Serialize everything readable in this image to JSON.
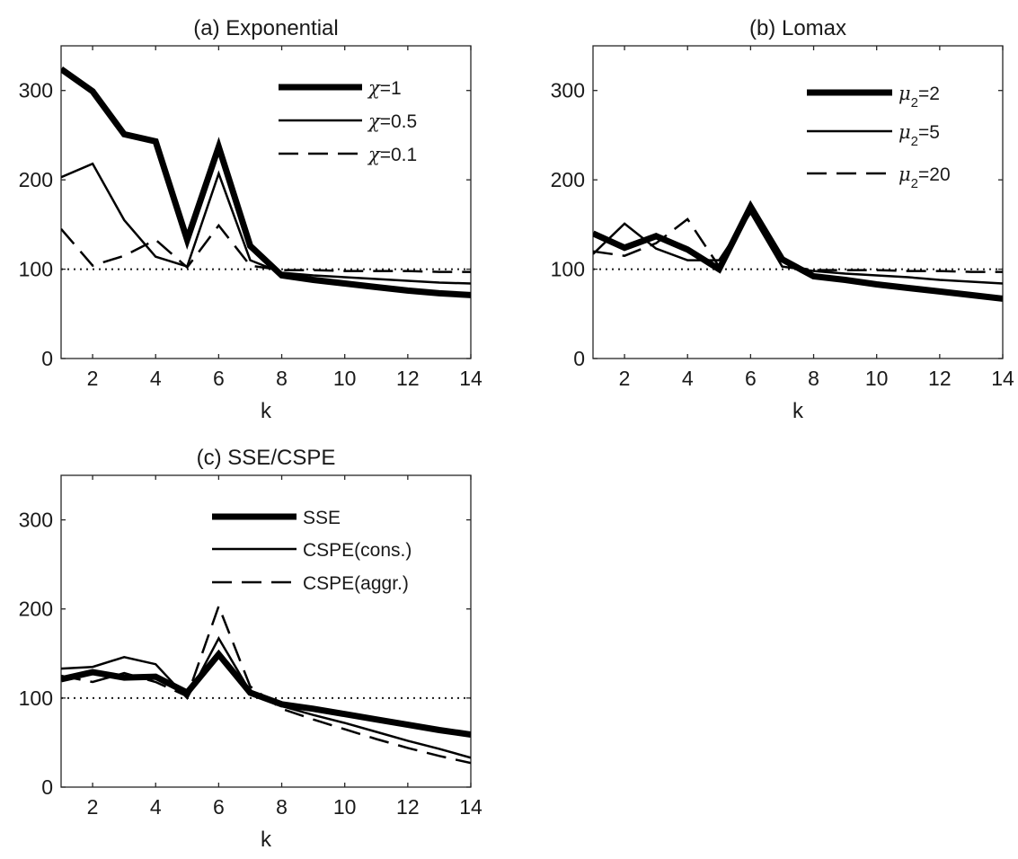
{
  "chart_data": [
    {
      "type": "line",
      "title": "(a) Exponential",
      "xlabel": "k",
      "ylabel": "",
      "xlim": [
        1,
        14
      ],
      "ylim": [
        0,
        350
      ],
      "xticks": [
        2,
        4,
        6,
        8,
        10,
        12,
        14
      ],
      "yticks": [
        0,
        100,
        200,
        300
      ],
      "reference_line": {
        "y": 100,
        "style": "dotted"
      },
      "legend": {
        "placement": "top-right",
        "entries": [
          {
            "symbol": "χ",
            "text": "=1"
          },
          {
            "symbol": "χ",
            "text": "=0.5"
          },
          {
            "symbol": "χ",
            "text": "=0.1"
          }
        ]
      },
      "x": [
        1,
        2,
        3,
        4,
        5,
        6,
        7,
        8,
        9,
        10,
        11,
        12,
        13,
        14
      ],
      "series": [
        {
          "name": "χ=1",
          "style": "thick-solid",
          "values": [
            324,
            299,
            251,
            243,
            133,
            237,
            126,
            93,
            88,
            84,
            80,
            76,
            73,
            71
          ]
        },
        {
          "name": "χ=0.5",
          "style": "thin-solid",
          "values": [
            203,
            218,
            155,
            114,
            103,
            207,
            110,
            96,
            93,
            91,
            89,
            87,
            85,
            84
          ]
        },
        {
          "name": "χ=0.1",
          "style": "dashed",
          "values": [
            145,
            104,
            115,
            133,
            102,
            149,
            104,
            99,
            99,
            98,
            98,
            98,
            97,
            97
          ]
        }
      ]
    },
    {
      "type": "line",
      "title": "(b) Lomax",
      "xlabel": "k",
      "ylabel": "",
      "xlim": [
        1,
        14
      ],
      "ylim": [
        0,
        350
      ],
      "xticks": [
        2,
        4,
        6,
        8,
        10,
        12,
        14
      ],
      "yticks": [
        0,
        100,
        200,
        300
      ],
      "reference_line": {
        "y": 100,
        "style": "dotted"
      },
      "legend": {
        "placement": "top-right",
        "entries": [
          {
            "symbol": "μ",
            "sub": "2",
            "text": "=2"
          },
          {
            "symbol": "μ",
            "sub": "2",
            "text": "=5"
          },
          {
            "symbol": "μ",
            "sub": "2",
            "text": "=20"
          }
        ]
      },
      "x": [
        1,
        2,
        3,
        4,
        5,
        6,
        7,
        8,
        9,
        10,
        11,
        12,
        13,
        14
      ],
      "series": [
        {
          "name": "μ2=2",
          "style": "thick-solid",
          "values": [
            140,
            124,
            137,
            122,
            100,
            170,
            111,
            92,
            88,
            83,
            79,
            75,
            71,
            67
          ]
        },
        {
          "name": "μ2=5",
          "style": "thin-solid",
          "values": [
            117,
            151,
            123,
            110,
            110,
            163,
            103,
            98,
            95,
            93,
            91,
            88,
            86,
            84
          ]
        },
        {
          "name": "μ2=20",
          "style": "dashed",
          "values": [
            120,
            115,
            129,
            156,
            103,
            166,
            104,
            99,
            99,
            99,
            98,
            98,
            97,
            97
          ]
        }
      ]
    },
    {
      "type": "line",
      "title": "(c) SSE/CSPE",
      "xlabel": "k",
      "ylabel": "",
      "xlim": [
        1,
        14
      ],
      "ylim": [
        0,
        350
      ],
      "xticks": [
        2,
        4,
        6,
        8,
        10,
        12,
        14
      ],
      "yticks": [
        0,
        100,
        200,
        300
      ],
      "reference_line": {
        "y": 100,
        "style": "dotted"
      },
      "legend": {
        "placement": "top-right",
        "entries": [
          {
            "symbol": "",
            "text": "SSE"
          },
          {
            "symbol": "",
            "text": "CSPE(cons.)"
          },
          {
            "symbol": "",
            "text": "CSPE(aggr.)"
          }
        ]
      },
      "x": [
        1,
        2,
        3,
        4,
        5,
        6,
        7,
        8,
        9,
        10,
        11,
        12,
        13,
        14
      ],
      "series": [
        {
          "name": "SSE",
          "style": "thick-solid",
          "values": [
            121,
            129,
            123,
            124,
            106,
            149,
            106,
            93,
            88,
            82,
            76,
            70,
            64,
            59
          ]
        },
        {
          "name": "CSPE(cons.)",
          "style": "thin-solid",
          "values": [
            133,
            135,
            146,
            138,
            100,
            167,
            107,
            91,
            81,
            72,
            62,
            52,
            43,
            33
          ]
        },
        {
          "name": "CSPE(aggr.)",
          "style": "dashed",
          "values": [
            125,
            118,
            128,
            118,
            102,
            203,
            113,
            88,
            76,
            65,
            54,
            44,
            35,
            27
          ]
        }
      ]
    }
  ]
}
